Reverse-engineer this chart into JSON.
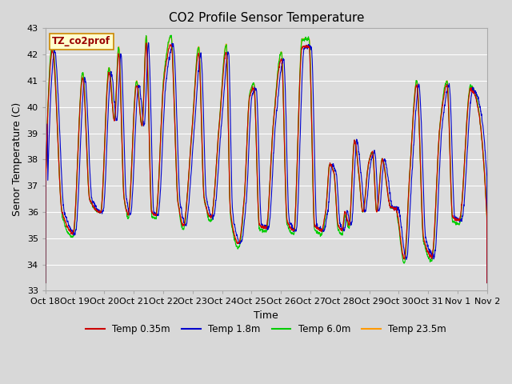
{
  "title": "CO2 Profile Sensor Temperature",
  "ylabel": "Senor Temperature (C)",
  "xlabel": "Time",
  "legend_label": "TZ_co2prof",
  "ylim": [
    33.0,
    43.0
  ],
  "yticks": [
    33.0,
    34.0,
    35.0,
    36.0,
    37.0,
    38.0,
    39.0,
    40.0,
    41.0,
    42.0,
    43.0
  ],
  "xtick_labels": [
    "Oct 18",
    "Oct 19",
    "Oct 20",
    "Oct 21",
    "Oct 22",
    "Oct 23",
    "Oct 24",
    "Oct 25",
    "Oct 26",
    "Oct 27",
    "Oct 28",
    "Oct 29",
    "Oct 30",
    "Oct 31",
    "Nov 1",
    "Nov 2"
  ],
  "series_colors": [
    "#cc0000",
    "#0000cc",
    "#00cc00",
    "#ff9900"
  ],
  "series_labels": [
    "Temp 0.35m",
    "Temp 1.8m",
    "Temp 6.0m",
    "Temp 23.5m"
  ],
  "plot_bg_color": "#dcdcdc",
  "grid_color": "#ffffff",
  "title_fontsize": 11,
  "axis_fontsize": 9,
  "tick_fontsize": 8
}
